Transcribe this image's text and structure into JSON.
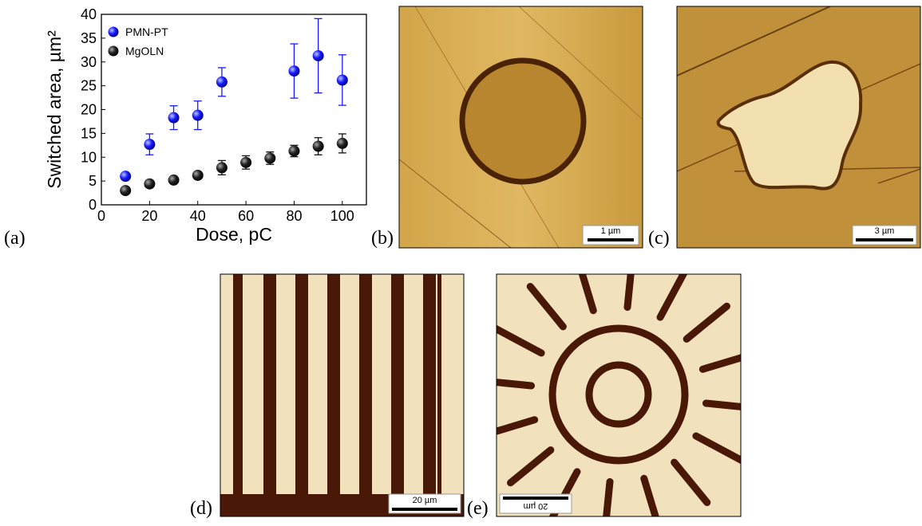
{
  "chart_data": {
    "type": "scatter",
    "x_label": "Dose, pC",
    "y_label": "Switched area, µm²",
    "xlim": [
      0,
      110
    ],
    "xticks": [
      0,
      20,
      40,
      60,
      80,
      100
    ],
    "ylim": [
      0,
      40
    ],
    "yticks": [
      0,
      5,
      10,
      15,
      20,
      25,
      30,
      35,
      40
    ],
    "legend": "upper left",
    "series": [
      {
        "name": "PMN-PT",
        "color": "#1a1aff",
        "x": [
          10,
          20,
          30,
          40,
          50,
          80,
          90,
          100
        ],
        "values": [
          6,
          12.7,
          18.3,
          18.8,
          25.8,
          28.1,
          31.3,
          26.2
        ],
        "errors": [
          0.5,
          2.2,
          2.5,
          3,
          3,
          5.7,
          7.8,
          5.3
        ]
      },
      {
        "name": "MgOLN",
        "color": "#111111",
        "x": [
          10,
          20,
          30,
          40,
          50,
          60,
          70,
          80,
          90,
          100
        ],
        "values": [
          3,
          4.4,
          5.2,
          6.2,
          7.8,
          8.9,
          9.8,
          11.3,
          12.3,
          12.9
        ],
        "errors": [
          0.3,
          0.4,
          0.5,
          0.6,
          1.5,
          1.4,
          1.3,
          1.2,
          1.8,
          2
        ]
      }
    ]
  },
  "panels": {
    "labels": [
      "(a)",
      "(b)",
      "(c)",
      "(d)",
      "(e)"
    ],
    "scale_bars": [
      "1 µm",
      "3 µm",
      "20 µm",
      "20 µm"
    ]
  }
}
